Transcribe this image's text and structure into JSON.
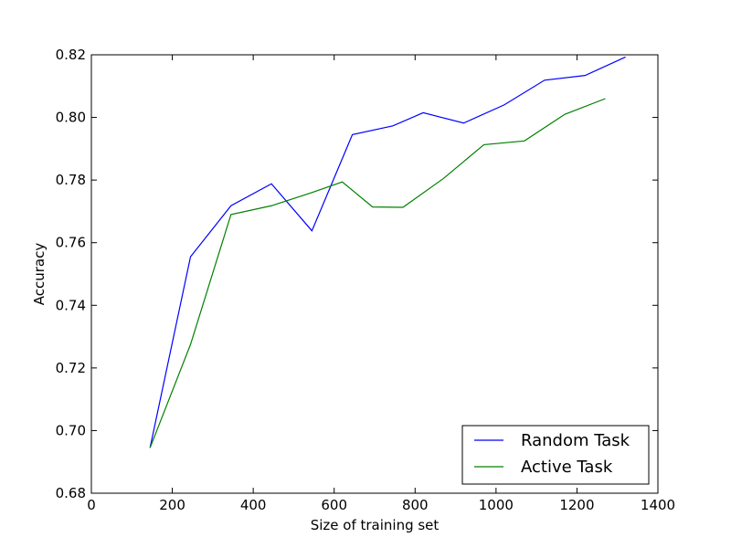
{
  "chart_data": {
    "type": "line",
    "title": "",
    "xlabel": "Size of training set",
    "ylabel": "Accuracy",
    "xlim": [
      0,
      1400
    ],
    "ylim": [
      0.68,
      0.82
    ],
    "xticks": [
      0,
      200,
      400,
      600,
      800,
      1000,
      1200,
      1400
    ],
    "yticks": [
      0.68,
      0.7,
      0.72,
      0.74,
      0.76,
      0.78,
      0.8,
      0.82
    ],
    "xtick_labels": [
      "0",
      "200",
      "400",
      "600",
      "800",
      "1000",
      "1200",
      "1400"
    ],
    "ytick_labels": [
      "0.68",
      "0.70",
      "0.72",
      "0.74",
      "0.76",
      "0.78",
      "0.80",
      "0.82"
    ],
    "grid": false,
    "legend_position": "lower-right",
    "series": [
      {
        "name": "Random Task",
        "color": "#0000ff",
        "x": [
          145,
          245,
          345,
          445,
          545,
          645,
          745,
          820,
          920,
          1020,
          1120,
          1220,
          1320
        ],
        "y": [
          0.6945,
          0.7555,
          0.7718,
          0.7788,
          0.7638,
          0.7945,
          0.7973,
          0.8015,
          0.7982,
          0.804,
          0.8119,
          0.8134,
          0.8193
        ]
      },
      {
        "name": "Active Task",
        "color": "#008000",
        "x": [
          145,
          245,
          345,
          445,
          545,
          620,
          695,
          770,
          870,
          970,
          1070,
          1170,
          1270
        ],
        "y": [
          0.6945,
          0.7275,
          0.769,
          0.7718,
          0.776,
          0.7794,
          0.7714,
          0.7713,
          0.7805,
          0.7913,
          0.7925,
          0.801,
          0.806
        ]
      }
    ]
  }
}
